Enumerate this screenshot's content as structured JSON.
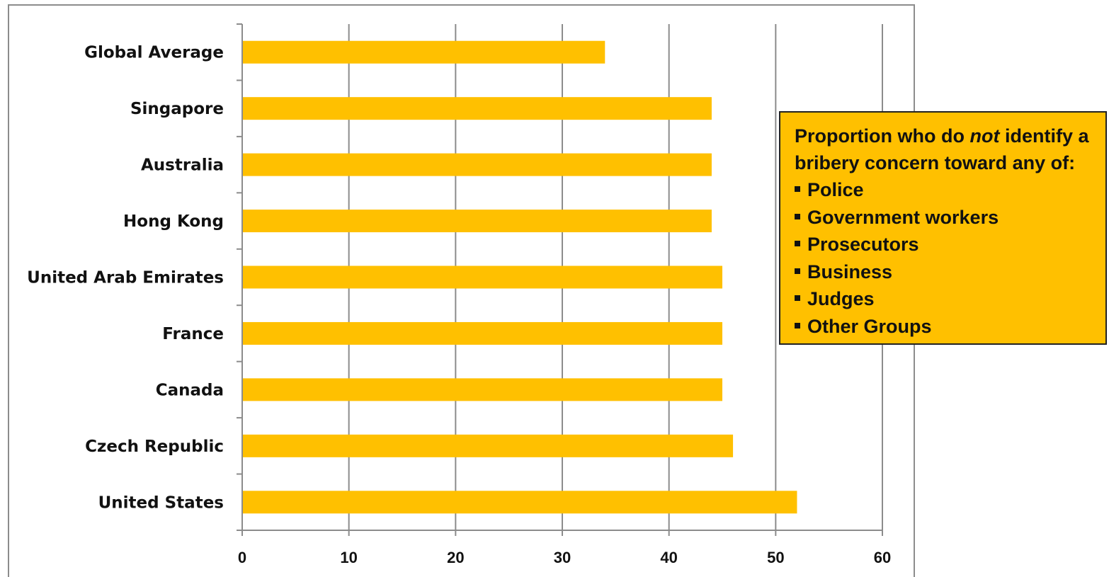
{
  "chart_data": {
    "type": "bar",
    "orientation": "horizontal",
    "categories": [
      "Global Average",
      "Singapore",
      "Australia",
      "Hong Kong",
      "United Arab Emirates",
      "France",
      "Canada",
      "Czech Republic",
      "United States"
    ],
    "values": [
      34,
      44,
      44,
      44,
      45,
      45,
      45,
      46,
      52
    ],
    "xlim": [
      0,
      60
    ],
    "xticks": [
      "0",
      "10",
      "20",
      "30",
      "40",
      "50",
      "60"
    ],
    "grid": "vertical",
    "bar_color": "#ffc000",
    "title": "",
    "xlabel": "",
    "ylabel": ""
  },
  "annotation": {
    "heading_part1": "Proportion who do ",
    "heading_emphasis": "not",
    "heading_part2": " identify a",
    "heading_line2": "bribery concern toward any of:",
    "items": [
      "Police",
      "Government workers",
      "Prosecutors",
      "Business",
      "Judges",
      "Other Groups"
    ],
    "background": "#ffc000"
  }
}
